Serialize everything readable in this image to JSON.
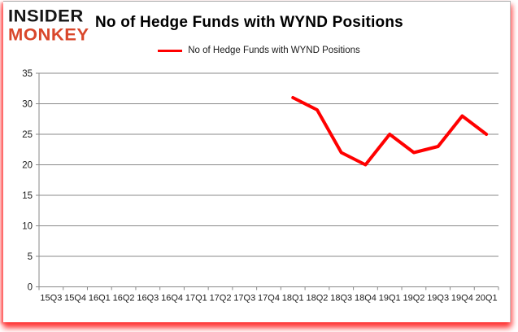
{
  "brand": {
    "line1": "INSIDER",
    "line2": "MONKEY",
    "color1": "#151515",
    "color2": "#d9472b"
  },
  "header": {
    "title": "No of Hedge Funds with WYND Positions"
  },
  "legend": {
    "label": "No of Hedge Funds with WYND Positions",
    "swatch_color": "#ff0000",
    "position": "top-center"
  },
  "colors": {
    "line": "#ff0000",
    "grid": "#898989",
    "axis": "#898989",
    "tick_label": "#1a1a1a",
    "card_glow": "#ff0000"
  },
  "chart_data": {
    "type": "line",
    "title": "No of Hedge Funds with WYND Positions",
    "xlabel": "",
    "ylabel": "",
    "categories": [
      "15Q3",
      "15Q4",
      "16Q1",
      "16Q2",
      "16Q3",
      "16Q4",
      "17Q1",
      "17Q2",
      "17Q3",
      "17Q4",
      "18Q1",
      "18Q2",
      "18Q3",
      "18Q4",
      "19Q1",
      "19Q2",
      "19Q3",
      "19Q4",
      "20Q1"
    ],
    "series": [
      {
        "name": "No of Hedge Funds with WYND Positions",
        "color": "#ff0000",
        "values": [
          null,
          null,
          null,
          null,
          null,
          null,
          null,
          null,
          null,
          null,
          31,
          29,
          22,
          20,
          25,
          22,
          23,
          28,
          25
        ]
      }
    ],
    "ylim": [
      0,
      35
    ],
    "ytick_step": 5,
    "yticks": [
      0,
      5,
      10,
      15,
      20,
      25,
      30,
      35
    ],
    "grid": true,
    "legend_position": "top-center"
  }
}
